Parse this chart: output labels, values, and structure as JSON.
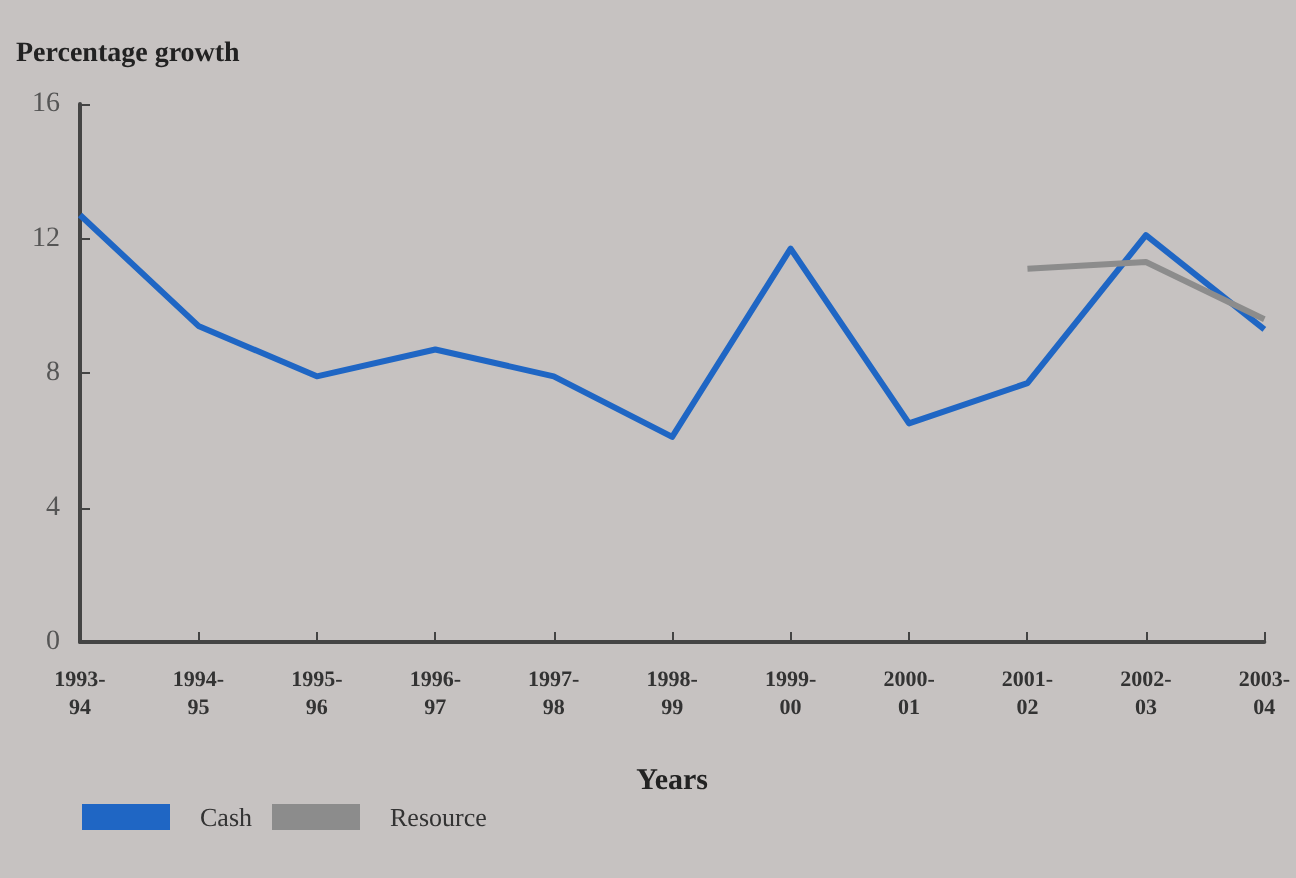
{
  "chart_data": {
    "type": "line",
    "ylabel": "Percentage growth",
    "xlabel": "Years",
    "categories": [
      "1993-\n94",
      "1994-\n95",
      "1995-\n96",
      "1996-\n97",
      "1997-\n98",
      "1998-\n99",
      "1999-\n00",
      "2000-\n01",
      "2001-\n02",
      "2002-\n03",
      "2003-\n04"
    ],
    "series": [
      {
        "name": "Cash",
        "color": "#1f66c4",
        "values": [
          12.7,
          9.4,
          7.9,
          8.7,
          7.9,
          6.1,
          11.7,
          6.5,
          7.7,
          12.1,
          9.3
        ]
      },
      {
        "name": "Resource",
        "color": "#8c8c8c",
        "values": [
          null,
          null,
          null,
          null,
          null,
          null,
          null,
          null,
          11.1,
          11.3,
          9.6
        ]
      }
    ],
    "ylim": [
      0,
      16
    ],
    "yticks": [
      0,
      4,
      8,
      12,
      16
    ],
    "grid": false,
    "legend": "bottom left",
    "marker": "none"
  }
}
